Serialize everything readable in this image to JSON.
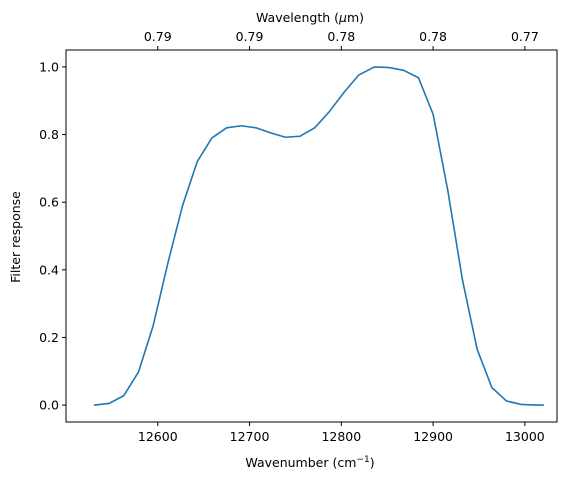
{
  "chart_data": {
    "type": "line",
    "title": "",
    "xlabel": "Wavenumber (cm",
    "xlabel_sup": "−1",
    "xlabel_suffix": ")",
    "ylabel": "Filter response",
    "top_xlabel_prefix": "Wavelength (",
    "top_xlabel_mu": "μ",
    "top_xlabel_suffix": "m)",
    "xlim": [
      12500,
      13035
    ],
    "ylim": [
      -0.05,
      1.05
    ],
    "x_ticks": [
      12600,
      12700,
      12800,
      12900,
      13000
    ],
    "x_tick_labels": [
      "12600",
      "12700",
      "12800",
      "12900",
      "13000"
    ],
    "y_ticks": [
      0.0,
      0.2,
      0.4,
      0.6,
      0.8,
      1.0
    ],
    "y_tick_labels": [
      "0.0",
      "0.2",
      "0.4",
      "0.6",
      "0.8",
      "1.0"
    ],
    "top_ticks_wavenumber": [
      12600,
      12700,
      12800,
      12900,
      13000
    ],
    "top_tick_labels": [
      "0.79",
      "0.79",
      "0.78",
      "0.78",
      "0.77"
    ],
    "grid": false,
    "line_color": "#1f77b4",
    "series": [
      {
        "x": [
          12531,
          12547,
          12563,
          12579,
          12595,
          12611,
          12627,
          12643,
          12659,
          12675,
          12691,
          12707,
          12723,
          12739,
          12755,
          12771,
          12787,
          12803,
          12819,
          12836,
          12852,
          12868,
          12884,
          12900,
          12916,
          12932,
          12948,
          12964,
          12980,
          12996,
          13012,
          13020
        ],
        "y": [
          0.0,
          0.005,
          0.028,
          0.098,
          0.235,
          0.42,
          0.59,
          0.72,
          0.79,
          0.82,
          0.826,
          0.82,
          0.805,
          0.792,
          0.795,
          0.82,
          0.868,
          0.925,
          0.976,
          1.0,
          0.998,
          0.99,
          0.968,
          0.86,
          0.635,
          0.37,
          0.165,
          0.052,
          0.012,
          0.002,
          0.0,
          0.0
        ]
      }
    ]
  }
}
